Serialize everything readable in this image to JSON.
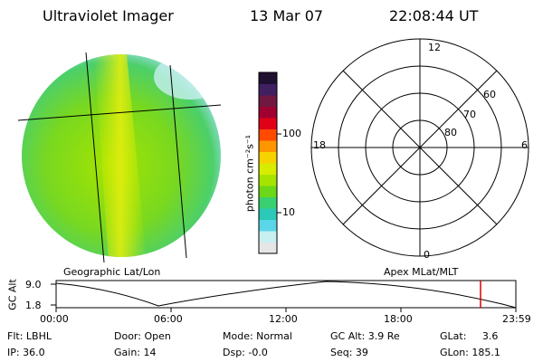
{
  "header": {
    "title": "Ultraviolet Imager",
    "date": "13 Mar 07",
    "time": "22:08:44 UT"
  },
  "colorbar": {
    "unit_label": "photon cm⁻²s⁻¹",
    "tick_100": "100",
    "tick_10": "10",
    "colors": [
      "#e6e6e6",
      "#c8f0f0",
      "#5ad6e8",
      "#2cc8b8",
      "#38d070",
      "#6cd818",
      "#a6e400",
      "#d8ec00",
      "#f5d200",
      "#ff9600",
      "#ff4a00",
      "#e00018",
      "#a00030",
      "#701840",
      "#402060",
      "#201030"
    ]
  },
  "polar_plot": {
    "mlt_labels": {
      "top": "12",
      "left": "18",
      "right": "6",
      "bottom": "0"
    },
    "lat_labels": [
      "60",
      "70",
      "80"
    ]
  },
  "left_caption": "Geographic Lat/Lon",
  "right_caption": "Apex MLat/MLT",
  "timeline": {
    "y_axis_label": "GC Alt",
    "y_ticks": [
      "9.0",
      "1.8"
    ],
    "x_ticks": [
      "00:00",
      "06:00",
      "12:00",
      "18:00",
      "23:59"
    ],
    "marker_color": "#dd0000"
  },
  "info": {
    "flt": "Flt: LBHL",
    "ip": "IP: 36.0",
    "door": "Door: Open",
    "gain": "Gain: 14",
    "mode": "Mode: Normal",
    "dsp": "Dsp:   -0.0",
    "gc_alt": "GC Alt: 3.9 Re",
    "seq": "Seq: 39",
    "glat": "GLat:     3.6",
    "glon": "GLon: 185.1"
  }
}
